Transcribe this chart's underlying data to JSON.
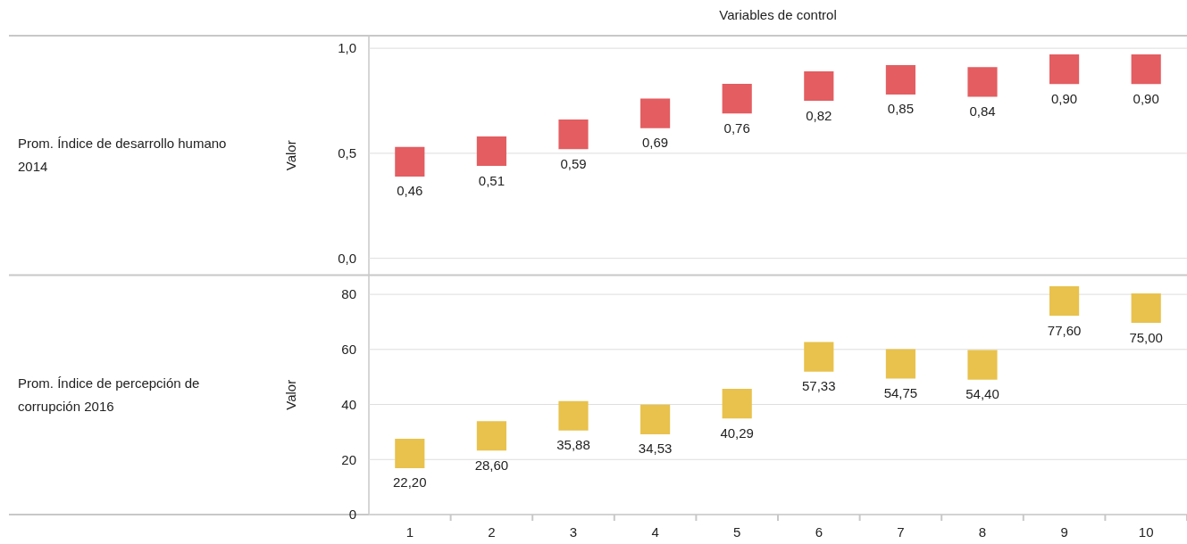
{
  "chart_data": [
    {
      "type": "scatter",
      "annotations": [
        "Prom. Índice de desarrollo humano 2014"
      ],
      "xlabel": "Variables de control",
      "ylabel": "Valor",
      "categories": [
        null,
        null,
        null,
        null,
        null,
        null,
        null,
        null,
        null,
        null
      ],
      "series": [
        {
          "color": "#e35d61",
          "values": [
            0.46,
            0.51,
            0.59,
            0.69,
            0.76,
            0.82,
            0.85,
            0.84,
            0.9,
            0.9
          ]
        }
      ],
      "value_labels": [
        "0,46",
        "0,51",
        "0,59",
        "0,69",
        "0,76",
        "0,82",
        "0,85",
        "0,84",
        "0,90",
        "0,90"
      ],
      "ylim": [
        -0.08,
        1.06
      ],
      "yticks": [
        {
          "value": 0,
          "label": "0,0"
        },
        {
          "value": 0.5,
          "label": "0,5"
        },
        {
          "value": 1,
          "label": "1,0"
        }
      ],
      "grid": "y",
      "marker": "square",
      "tick_labels": "y"
    },
    {
      "type": "scatter",
      "annotations": [
        "Prom. Índice de percepción de corrupción 2016"
      ],
      "ylabel": "Valor",
      "categories": [
        "1",
        "2",
        "3",
        "4",
        "5",
        "6",
        "7",
        "8",
        "9",
        "10"
      ],
      "series": [
        {
          "color": "#e8c24c",
          "values": [
            22.2,
            28.6,
            35.88,
            34.53,
            40.29,
            57.33,
            54.75,
            54.4,
            77.6,
            75.0
          ]
        }
      ],
      "value_labels": [
        "22,20",
        "28,60",
        "35,88",
        "34,53",
        "40,29",
        "57,33",
        "54,75",
        "54,40",
        "77,60",
        "75,00"
      ],
      "ylim": [
        0,
        87
      ],
      "yticks": [
        0,
        20,
        40,
        60,
        80
      ],
      "grid": "y",
      "marker": "square"
    }
  ]
}
